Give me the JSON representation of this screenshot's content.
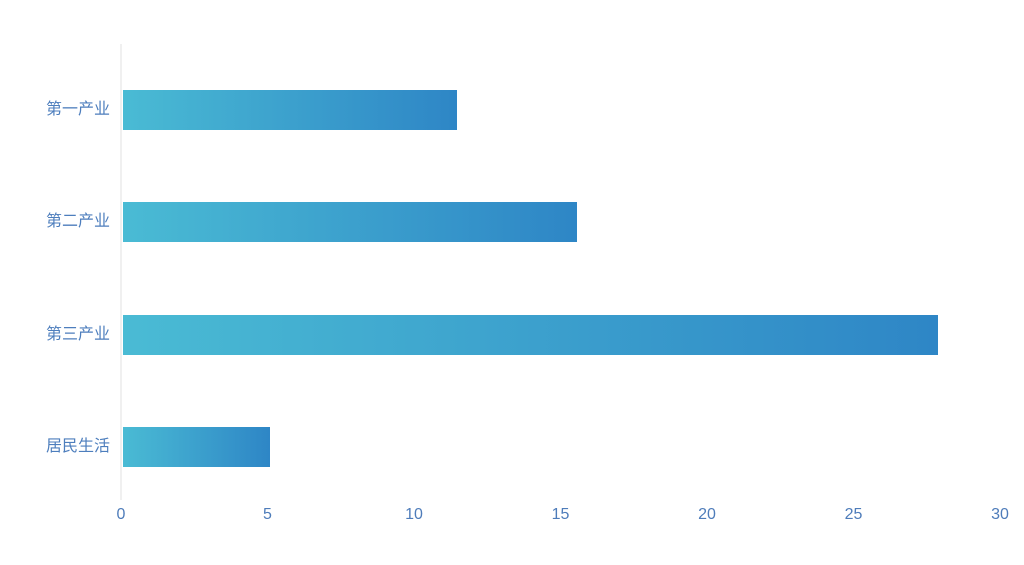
{
  "chart_data": {
    "type": "bar",
    "orientation": "horizontal",
    "title": "",
    "xlabel": "",
    "ylabel": "",
    "categories": [
      "第一产业",
      "第二产业",
      "第三产业",
      "居民生活"
    ],
    "values": [
      11.4,
      15.5,
      27.8,
      5
    ],
    "xticks": [
      0,
      5,
      10,
      15,
      20,
      25,
      30
    ],
    "xlim": [
      0,
      30
    ],
    "grid": false,
    "legend": "none",
    "colors": {
      "bar_gradient_start": "#4ABBD4",
      "bar_gradient_end": "#2E86C6",
      "category_label": "#4D7EBD",
      "tick_label": "#4E7CBA",
      "axis_line": "#F0F0F0",
      "background": "#FFFFFF"
    }
  }
}
